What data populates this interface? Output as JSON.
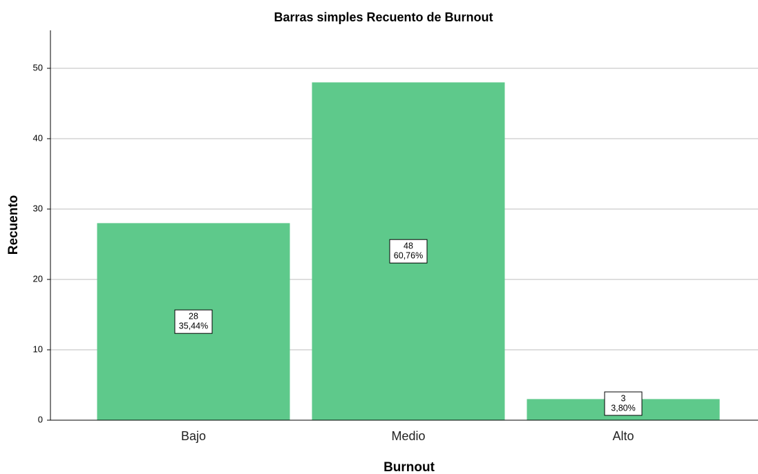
{
  "chart_data": {
    "type": "bar",
    "title": "Barras simples Recuento de Burnout",
    "x_label": "Burnout",
    "y_label": "Recuento",
    "categories": [
      "Bajo",
      "Medio",
      "Alto"
    ],
    "values": [
      28,
      48,
      3
    ],
    "percentages": [
      35.44,
      60.76,
      3.8
    ],
    "percentage_labels": [
      "35,44%",
      "60,76%",
      "3,80%"
    ],
    "color": "#5ec98b",
    "ylim": [
      0,
      55
    ],
    "yticks": [
      0,
      10,
      20,
      30,
      40,
      50
    ],
    "grid": true
  }
}
